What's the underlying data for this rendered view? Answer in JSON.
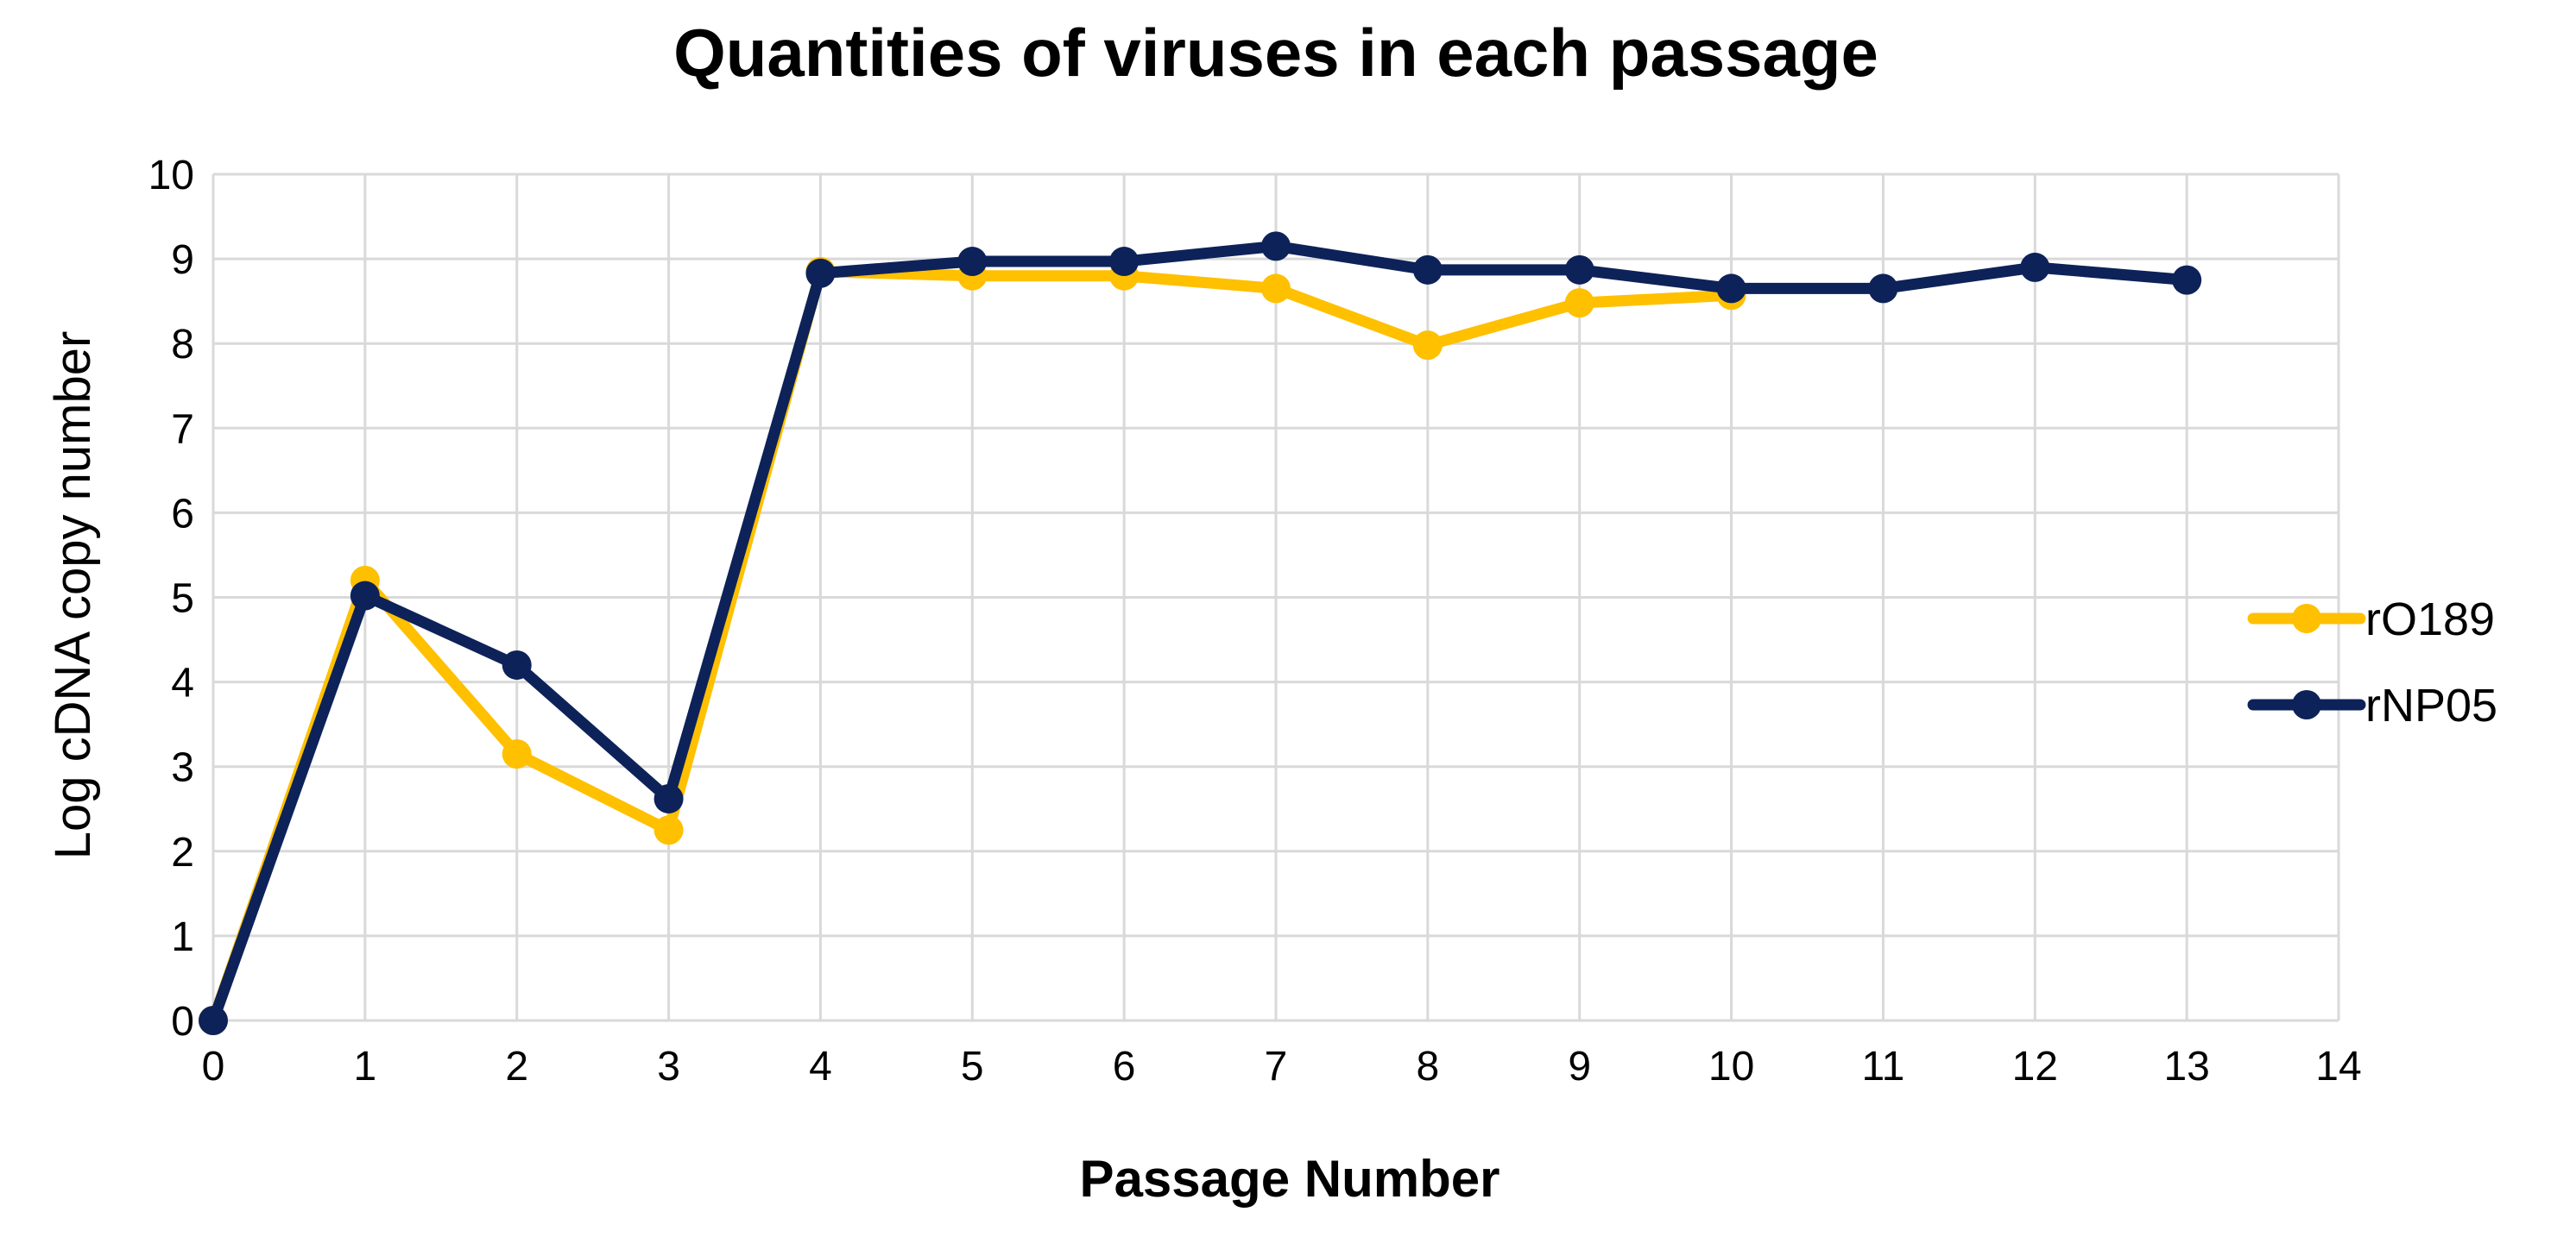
{
  "chart_data": {
    "type": "line",
    "title": "Quantities of viruses in each passage",
    "xlabel": "Passage Number",
    "ylabel": "Log cDNA copy number",
    "xlim": [
      0,
      14
    ],
    "ylim": [
      0,
      10
    ],
    "xticks": [
      0,
      1,
      2,
      3,
      4,
      5,
      6,
      7,
      8,
      9,
      10,
      11,
      12,
      13,
      14
    ],
    "yticks": [
      0,
      1,
      2,
      3,
      4,
      5,
      6,
      7,
      8,
      9,
      10
    ],
    "grid": true,
    "legend_position": "right",
    "series": [
      {
        "name": "rO189",
        "color": "#ffc000",
        "x": [
          0,
          1,
          2,
          3,
          4,
          5,
          6,
          7,
          8,
          9,
          10
        ],
        "values": [
          0,
          5.2,
          3.15,
          2.25,
          8.85,
          8.8,
          8.8,
          8.65,
          7.98,
          8.48,
          8.57
        ]
      },
      {
        "name": "rNP05",
        "color": "#0d2259",
        "x": [
          0,
          1,
          2,
          3,
          4,
          5,
          6,
          7,
          8,
          9,
          10,
          11,
          12,
          13
        ],
        "values": [
          0,
          5.02,
          4.2,
          2.62,
          8.83,
          8.97,
          8.97,
          9.15,
          8.87,
          8.87,
          8.65,
          8.65,
          8.9,
          8.75
        ]
      }
    ]
  }
}
